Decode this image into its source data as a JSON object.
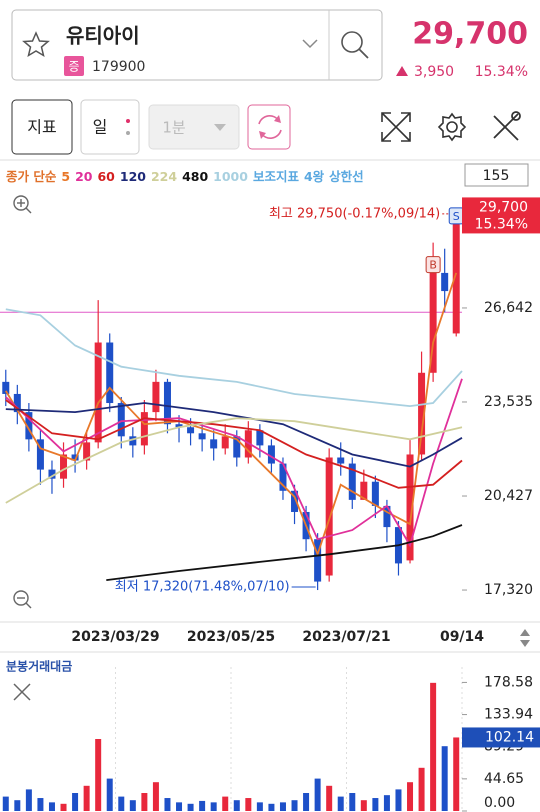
{
  "header": {
    "name": "유티아이",
    "market": "증",
    "code": "179900",
    "price": "29,700",
    "change": "3,950",
    "change_pct": "15.34%"
  },
  "toolbar": {
    "indicator": "지표",
    "period": "일",
    "interval": "1분",
    "count": "155"
  },
  "ma_legend": {
    "label": "종가 단순",
    "label_color": "#e0702a",
    "extras": [
      "보조지표",
      "4왕",
      "상한선"
    ],
    "extras_color": "#5aa8e0"
  },
  "chart_data": [
    {
      "type": "candlestick",
      "open": [
        24200,
        23800,
        23200,
        22300,
        21300,
        21000,
        21800,
        21600,
        22200,
        25500,
        23500,
        22400,
        22100,
        23200,
        24200,
        22800,
        22700,
        22500,
        22300,
        22000,
        22400,
        21700,
        22600,
        22100,
        21500,
        20600,
        19900,
        19000,
        17800,
        21700,
        21500,
        20300,
        20900,
        20100,
        19400,
        18300,
        21800,
        24500,
        27800,
        25800
      ],
      "high": [
        24600,
        24100,
        23500,
        22600,
        21600,
        22200,
        22300,
        22600,
        26900,
        25800,
        23700,
        22700,
        23600,
        24600,
        24300,
        23100,
        23000,
        22800,
        22600,
        22800,
        22600,
        22900,
        22800,
        22300,
        21700,
        20800,
        20100,
        19200,
        22000,
        22200,
        21700,
        21300,
        21100,
        20300,
        19600,
        22300,
        25200,
        28800,
        28600,
        29750
      ],
      "low": [
        23400,
        22800,
        21900,
        20800,
        20500,
        20700,
        21200,
        21300,
        22000,
        23200,
        22000,
        21700,
        21800,
        22900,
        22500,
        22200,
        22100,
        21900,
        21600,
        21800,
        21400,
        21500,
        21700,
        21200,
        20300,
        19500,
        18600,
        17320,
        17600,
        21100,
        20000,
        20300,
        19700,
        18900,
        17800,
        18200,
        21600,
        24200,
        26500,
        25700
      ],
      "close": [
        23800,
        23200,
        22300,
        21300,
        21000,
        21800,
        21600,
        22200,
        25500,
        23500,
        22400,
        22100,
        23200,
        24200,
        22800,
        22700,
        22500,
        22300,
        22000,
        22400,
        21700,
        22600,
        22100,
        21500,
        20600,
        19900,
        19000,
        17600,
        21700,
        21500,
        20300,
        20900,
        20100,
        19400,
        18200,
        21800,
        24500,
        27800,
        27200,
        29700
      ],
      "up_color": "#e8283c",
      "down_color": "#1e50c8",
      "series": [
        {
          "name": "5",
          "color": "#e8782a",
          "x": [
            0,
            3,
            6,
            8,
            9,
            12,
            15,
            20,
            25,
            27,
            29,
            33,
            35,
            37,
            39
          ],
          "values": [
            23900,
            22000,
            21600,
            23500,
            24000,
            22800,
            22900,
            22300,
            20400,
            18500,
            20800,
            19900,
            19500,
            25500,
            27800
          ]
        },
        {
          "name": "20",
          "color": "#e0309a",
          "x": [
            0,
            5,
            10,
            15,
            20,
            24,
            27,
            30,
            33,
            35,
            37,
            39.5
          ],
          "values": [
            23700,
            21900,
            22900,
            23000,
            22400,
            21500,
            19000,
            19300,
            20100,
            18800,
            21500,
            24300
          ]
        },
        {
          "name": "60",
          "color": "#d42020",
          "x": [
            0,
            4,
            8,
            12,
            18,
            22,
            26,
            30,
            34,
            37,
            39.5
          ],
          "values": [
            23600,
            22500,
            22300,
            23000,
            22800,
            22600,
            21800,
            21300,
            20700,
            20800,
            21600
          ]
        },
        {
          "name": "120",
          "color": "#1e2a78",
          "x": [
            0,
            6,
            12,
            18,
            24,
            30,
            35,
            37,
            39.5
          ],
          "values": [
            23300,
            23200,
            23500,
            23200,
            22800,
            21800,
            21400,
            21800,
            22350
          ]
        },
        {
          "name": "224",
          "color": "#cfcf9a",
          "x": [
            0,
            5,
            10,
            15,
            20,
            25,
            30,
            35,
            39.5
          ],
          "values": [
            20200,
            21300,
            22200,
            22700,
            23000,
            22900,
            22600,
            22300,
            22700
          ]
        },
        {
          "name": "480",
          "color": "#111111",
          "x": [
            8.7,
            15,
            22,
            28,
            34,
            37,
            39.5
          ],
          "values": [
            17650,
            17950,
            18250,
            18500,
            18800,
            19100,
            19470
          ]
        },
        {
          "name": "1000",
          "color": "#a8d0e0",
          "x": [
            0,
            3,
            6,
            10,
            15,
            20,
            25,
            30,
            35,
            37,
            39.5
          ],
          "values": [
            26600,
            26400,
            25400,
            24700,
            24400,
            24200,
            23800,
            23600,
            23400,
            23500,
            24560
          ]
        }
      ],
      "reference_lines": [
        {
          "value": 26500,
          "color": "#e05ac8"
        }
      ],
      "high_label": "최고 29,750(-0.17%,09/14)",
      "low_label": "최저 17,320(71.48%,07/10)",
      "signals": [
        {
          "label": "B",
          "x": 37
        },
        {
          "label": "S",
          "x": 39
        }
      ],
      "xlim": [
        0,
        40
      ],
      "xticks": [
        {
          "value": 10,
          "label": "2023/03/29"
        },
        {
          "value": 20,
          "label": "2023/05/25"
        },
        {
          "value": 30,
          "label": "2023/07/21"
        },
        {
          "value": 40,
          "label": "09/14"
        }
      ],
      "ylim": [
        16330,
        30540
      ],
      "yticks": [
        {
          "value": 26642,
          "label": "26,642"
        },
        {
          "value": 23535,
          "label": "23,535"
        },
        {
          "value": 20427,
          "label": "20,427"
        },
        {
          "value": 17320,
          "label": "17,320"
        }
      ]
    },
    {
      "type": "bar",
      "title": "분봉거래대금",
      "values": [
        20,
        15,
        30,
        18,
        12,
        10,
        25,
        35,
        100,
        45,
        20,
        15,
        25,
        40,
        18,
        12,
        10,
        14,
        12,
        20,
        15,
        18,
        12,
        10,
        12,
        15,
        25,
        45,
        35,
        20,
        25,
        15,
        18,
        22,
        30,
        40,
        60,
        178,
        90,
        102.14
      ],
      "ylim": [
        0,
        200
      ],
      "yticks": [
        178.58,
        133.94,
        89.29,
        44.65,
        {
          "value": 0,
          "label": "0.00"
        }
      ],
      "badge_color": "#1e4fb8"
    }
  ]
}
